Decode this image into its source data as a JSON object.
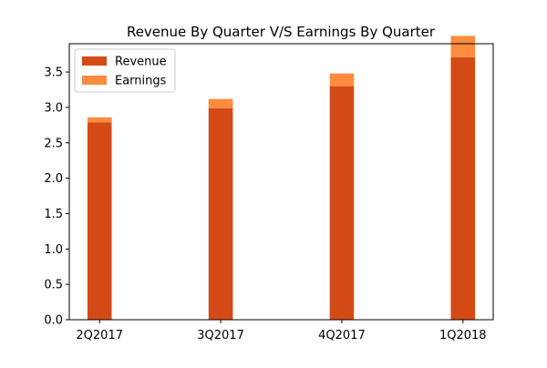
{
  "chart_data": {
    "type": "bar",
    "stacked": true,
    "title": "Revenue By Quarter V/S Earnings By Quarter",
    "xlabel": "",
    "ylabel": "",
    "categories": [
      "2Q2017",
      "3Q2017",
      "4Q2017",
      "1Q2018"
    ],
    "series": [
      {
        "name": "Revenue",
        "values": [
          2.79,
          2.99,
          3.3,
          3.71
        ],
        "color": "#d44a16"
      },
      {
        "name": "Earnings",
        "values": [
          0.07,
          0.13,
          0.18,
          0.3
        ],
        "color": "#fd8c3f"
      }
    ],
    "ylim": [
      0,
      3.9
    ],
    "yticks": [
      "0.0",
      "0.5",
      "1.0",
      "1.5",
      "2.0",
      "2.5",
      "3.0",
      "3.5"
    ],
    "grid": false,
    "legend_position": "top-left"
  }
}
